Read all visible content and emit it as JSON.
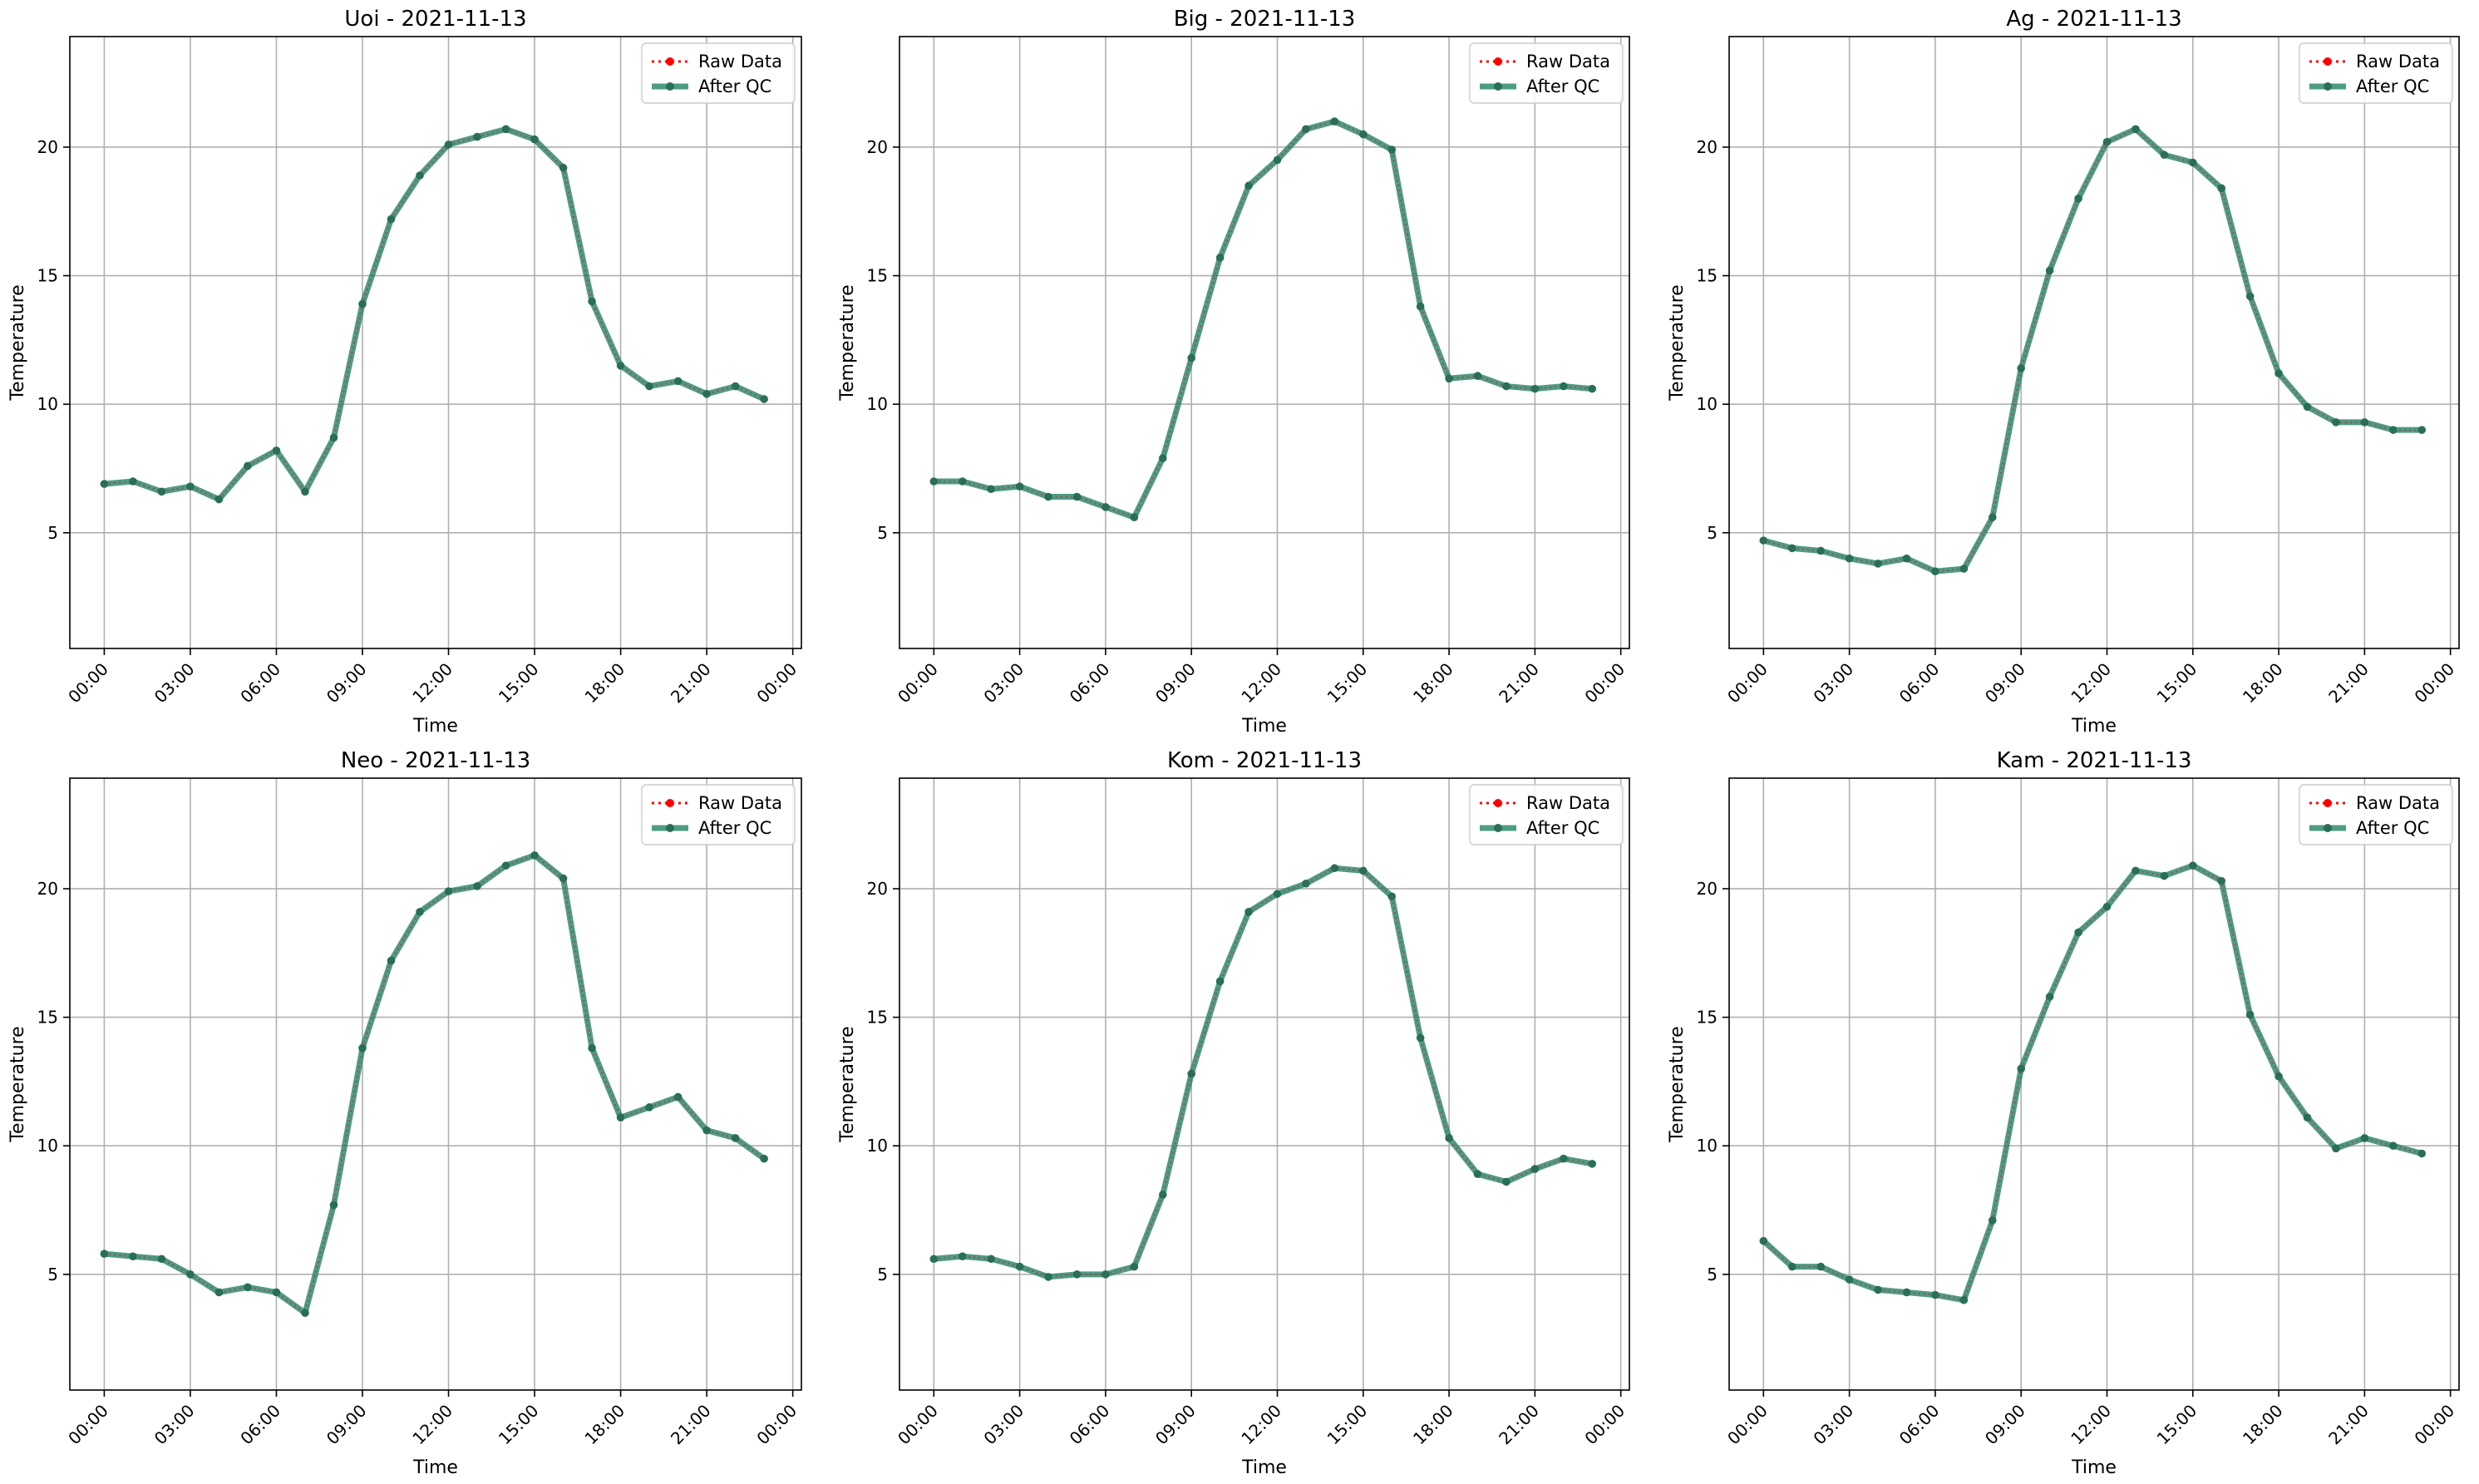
{
  "figure": {
    "colors": {
      "raw": "#ff0000",
      "qc": "#2e8b6f",
      "grid": "#b0b0b0",
      "axis": "#000000"
    }
  },
  "chart_data": [
    {
      "type": "line",
      "title": "Uoi - 2021-11-13",
      "xlabel": "Time",
      "ylabel": "Temperature",
      "x_ticks": [
        "00:00",
        "03:00",
        "06:00",
        "09:00",
        "12:00",
        "15:00",
        "18:00",
        "21:00",
        "00:00"
      ],
      "y_ticks": [
        "5",
        "10",
        "15",
        "20"
      ],
      "xlim": [
        -1.2,
        24.3
      ],
      "ylim": [
        0.5,
        24.3
      ],
      "x_hours": [
        0,
        1,
        2,
        3,
        4,
        5,
        6,
        7,
        8,
        9,
        10,
        11,
        12,
        13,
        14,
        15,
        16,
        17,
        18,
        19,
        20,
        21,
        22,
        23
      ],
      "legend": {
        "position": "upper right",
        "entries": [
          "Raw Data",
          "After QC"
        ]
      },
      "grid": true,
      "series": [
        {
          "name": "Raw Data",
          "values": [
            6.9,
            7.0,
            6.6,
            6.8,
            6.3,
            7.6,
            8.2,
            6.6,
            8.7,
            13.9,
            17.2,
            18.9,
            20.1,
            20.4,
            20.7,
            20.3,
            19.2,
            14.0,
            11.5,
            10.7,
            10.9,
            10.4,
            10.7,
            10.2
          ]
        },
        {
          "name": "After QC",
          "values": [
            6.9,
            7.0,
            6.6,
            6.8,
            6.3,
            7.6,
            8.2,
            6.6,
            8.7,
            13.9,
            17.2,
            18.9,
            20.1,
            20.4,
            20.7,
            20.3,
            19.2,
            14.0,
            11.5,
            10.7,
            10.9,
            10.4,
            10.7,
            10.2
          ]
        }
      ]
    },
    {
      "type": "line",
      "title": "Big - 2021-11-13",
      "xlabel": "Time",
      "ylabel": "Temperature",
      "x_ticks": [
        "00:00",
        "03:00",
        "06:00",
        "09:00",
        "12:00",
        "15:00",
        "18:00",
        "21:00",
        "00:00"
      ],
      "y_ticks": [
        "5",
        "10",
        "15",
        "20"
      ],
      "xlim": [
        -1.2,
        24.3
      ],
      "ylim": [
        0.5,
        24.3
      ],
      "x_hours": [
        0,
        1,
        2,
        3,
        4,
        5,
        6,
        7,
        8,
        9,
        10,
        11,
        12,
        13,
        14,
        15,
        16,
        17,
        18,
        19,
        20,
        21,
        22,
        23
      ],
      "legend": {
        "position": "upper right",
        "entries": [
          "Raw Data",
          "After QC"
        ]
      },
      "grid": true,
      "series": [
        {
          "name": "Raw Data",
          "values": [
            7.0,
            7.0,
            6.7,
            6.8,
            6.4,
            6.4,
            6.0,
            5.6,
            7.9,
            11.8,
            15.7,
            18.5,
            19.5,
            20.7,
            21.0,
            20.5,
            19.9,
            13.8,
            11.0,
            11.1,
            10.7,
            10.6,
            10.7,
            10.6
          ]
        },
        {
          "name": "After QC",
          "values": [
            7.0,
            7.0,
            6.7,
            6.8,
            6.4,
            6.4,
            6.0,
            5.6,
            7.9,
            11.8,
            15.7,
            18.5,
            19.5,
            20.7,
            21.0,
            20.5,
            19.9,
            13.8,
            11.0,
            11.1,
            10.7,
            10.6,
            10.7,
            10.6
          ]
        }
      ]
    },
    {
      "type": "line",
      "title": "Ag - 2021-11-13",
      "xlabel": "Time",
      "ylabel": "Temperature",
      "x_ticks": [
        "00:00",
        "03:00",
        "06:00",
        "09:00",
        "12:00",
        "15:00",
        "18:00",
        "21:00",
        "00:00"
      ],
      "y_ticks": [
        "5",
        "10",
        "15",
        "20"
      ],
      "xlim": [
        -1.2,
        24.3
      ],
      "ylim": [
        0.5,
        24.3
      ],
      "x_hours": [
        0,
        1,
        2,
        3,
        4,
        5,
        6,
        7,
        8,
        9,
        10,
        11,
        12,
        13,
        14,
        15,
        16,
        17,
        18,
        19,
        20,
        21,
        22,
        23
      ],
      "legend": {
        "position": "upper right",
        "entries": [
          "Raw Data",
          "After QC"
        ]
      },
      "grid": true,
      "series": [
        {
          "name": "Raw Data",
          "values": [
            4.7,
            4.4,
            4.3,
            4.0,
            3.8,
            4.0,
            3.5,
            3.6,
            5.6,
            11.4,
            15.2,
            18.0,
            20.2,
            20.7,
            19.7,
            19.4,
            18.4,
            14.2,
            11.2,
            9.9,
            9.3,
            9.3,
            9.0,
            9.0
          ]
        },
        {
          "name": "After QC",
          "values": [
            4.7,
            4.4,
            4.3,
            4.0,
            3.8,
            4.0,
            3.5,
            3.6,
            5.6,
            11.4,
            15.2,
            18.0,
            20.2,
            20.7,
            19.7,
            19.4,
            18.4,
            14.2,
            11.2,
            9.9,
            9.3,
            9.3,
            9.0,
            9.0
          ]
        }
      ]
    },
    {
      "type": "line",
      "title": "Neo - 2021-11-13",
      "xlabel": "Time",
      "ylabel": "Temperature",
      "x_ticks": [
        "00:00",
        "03:00",
        "06:00",
        "09:00",
        "12:00",
        "15:00",
        "18:00",
        "21:00",
        "00:00"
      ],
      "y_ticks": [
        "5",
        "10",
        "15",
        "20"
      ],
      "xlim": [
        -1.2,
        24.3
      ],
      "ylim": [
        0.5,
        24.3
      ],
      "x_hours": [
        0,
        1,
        2,
        3,
        4,
        5,
        6,
        7,
        8,
        9,
        10,
        11,
        12,
        13,
        14,
        15,
        16,
        17,
        18,
        19,
        20,
        21,
        22,
        23
      ],
      "legend": {
        "position": "upper right",
        "entries": [
          "Raw Data",
          "After QC"
        ]
      },
      "grid": true,
      "series": [
        {
          "name": "Raw Data",
          "values": [
            5.8,
            5.7,
            5.6,
            5.0,
            4.3,
            4.5,
            4.3,
            3.5,
            7.7,
            13.8,
            17.2,
            19.1,
            19.9,
            20.1,
            20.9,
            21.3,
            20.4,
            13.8,
            11.1,
            11.5,
            11.9,
            10.6,
            10.3,
            9.5
          ]
        },
        {
          "name": "After QC",
          "values": [
            5.8,
            5.7,
            5.6,
            5.0,
            4.3,
            4.5,
            4.3,
            3.5,
            7.7,
            13.8,
            17.2,
            19.1,
            19.9,
            20.1,
            20.9,
            21.3,
            20.4,
            13.8,
            11.1,
            11.5,
            11.9,
            10.6,
            10.3,
            9.5
          ]
        }
      ]
    },
    {
      "type": "line",
      "title": "Kom - 2021-11-13",
      "xlabel": "Time",
      "ylabel": "Temperature",
      "x_ticks": [
        "00:00",
        "03:00",
        "06:00",
        "09:00",
        "12:00",
        "15:00",
        "18:00",
        "21:00",
        "00:00"
      ],
      "y_ticks": [
        "5",
        "10",
        "15",
        "20"
      ],
      "xlim": [
        -1.2,
        24.3
      ],
      "ylim": [
        0.5,
        24.3
      ],
      "x_hours": [
        0,
        1,
        2,
        3,
        4,
        5,
        6,
        7,
        8,
        9,
        10,
        11,
        12,
        13,
        14,
        15,
        16,
        17,
        18,
        19,
        20,
        21,
        22,
        23
      ],
      "legend": {
        "position": "upper right",
        "entries": [
          "Raw Data",
          "After QC"
        ]
      },
      "grid": true,
      "series": [
        {
          "name": "Raw Data",
          "values": [
            5.6,
            5.7,
            5.6,
            5.3,
            4.9,
            5.0,
            5.0,
            5.3,
            8.1,
            12.8,
            16.4,
            19.1,
            19.8,
            20.2,
            20.8,
            20.7,
            19.7,
            14.2,
            10.3,
            8.9,
            8.6,
            9.1,
            9.5,
            9.3
          ]
        },
        {
          "name": "After QC",
          "values": [
            5.6,
            5.7,
            5.6,
            5.3,
            4.9,
            5.0,
            5.0,
            5.3,
            8.1,
            12.8,
            16.4,
            19.1,
            19.8,
            20.2,
            20.8,
            20.7,
            19.7,
            14.2,
            10.3,
            8.9,
            8.6,
            9.1,
            9.5,
            9.3
          ]
        }
      ]
    },
    {
      "type": "line",
      "title": "Kam - 2021-11-13",
      "xlabel": "Time",
      "ylabel": "Temperature",
      "x_ticks": [
        "00:00",
        "03:00",
        "06:00",
        "09:00",
        "12:00",
        "15:00",
        "18:00",
        "21:00",
        "00:00"
      ],
      "y_ticks": [
        "5",
        "10",
        "15",
        "20"
      ],
      "xlim": [
        -1.2,
        24.3
      ],
      "ylim": [
        0.5,
        24.3
      ],
      "x_hours": [
        0,
        1,
        2,
        3,
        4,
        5,
        6,
        7,
        8,
        9,
        10,
        11,
        12,
        13,
        14,
        15,
        16,
        17,
        18,
        19,
        20,
        21,
        22,
        23
      ],
      "legend": {
        "position": "upper right",
        "entries": [
          "Raw Data",
          "After QC"
        ]
      },
      "grid": true,
      "series": [
        {
          "name": "Raw Data",
          "values": [
            6.3,
            5.3,
            5.3,
            4.8,
            4.4,
            4.3,
            4.2,
            4.0,
            7.1,
            13.0,
            15.8,
            18.3,
            19.3,
            20.7,
            20.5,
            20.9,
            20.3,
            15.1,
            12.7,
            11.1,
            9.9,
            10.3,
            10.0,
            9.7
          ]
        },
        {
          "name": "After QC",
          "values": [
            6.3,
            5.3,
            5.3,
            4.8,
            4.4,
            4.3,
            4.2,
            4.0,
            7.1,
            13.0,
            15.8,
            18.3,
            19.3,
            20.7,
            20.5,
            20.9,
            20.3,
            15.1,
            12.7,
            11.1,
            9.9,
            10.3,
            10.0,
            9.7
          ]
        }
      ]
    }
  ]
}
